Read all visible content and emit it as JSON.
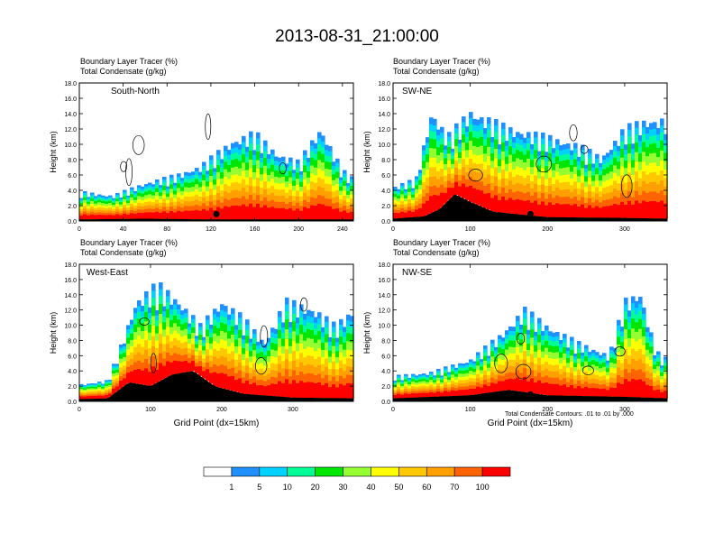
{
  "figure": {
    "title": "2013-08-31_21:00:00",
    "footnote": "Total Condensate Contours: .01 to .01 by .000",
    "xlabel": "Grid Point (dx=15km)",
    "ylabel": "Height (km)",
    "legend_levels": [
      "1",
      "5",
      "10",
      "20",
      "30",
      "40",
      "50",
      "60",
      "70",
      "100"
    ],
    "palette": [
      "#ffffff",
      "#1e90ff",
      "#00d2ff",
      "#00ff96",
      "#00e600",
      "#96ff32",
      "#ffff00",
      "#ffc800",
      "#ffa000",
      "#ff6400",
      "#ff0000"
    ]
  },
  "chart_data": [
    {
      "type": "heatmap",
      "name": "South-North",
      "title_line1": "Boundary Layer Tracer   (%)",
      "title_line2": "Total Condensate   (g/kg)",
      "xlim": [
        0,
        250
      ],
      "ylim": [
        0,
        18
      ],
      "xticks": [
        "0",
        "40",
        "80",
        "120",
        "160",
        "200",
        "240"
      ],
      "yticks": [
        "0.0",
        "2.0",
        "4.0",
        "6.0",
        "8.0",
        "10.0",
        "12.0",
        "14.0",
        "16.0",
        "18.0"
      ],
      "marker_x": 125,
      "terrain": [
        [
          0,
          0.2
        ],
        [
          60,
          0.3
        ],
        [
          120,
          0.2
        ],
        [
          180,
          0.2
        ],
        [
          250,
          0.2
        ]
      ],
      "tracer_top": [
        [
          0,
          3.5
        ],
        [
          30,
          3.0
        ],
        [
          60,
          4.5
        ],
        [
          90,
          5.5
        ],
        [
          110,
          6.5
        ],
        [
          140,
          9.5
        ],
        [
          160,
          10.5
        ],
        [
          180,
          8.0
        ],
        [
          200,
          7.0
        ],
        [
          220,
          11.0
        ],
        [
          240,
          6.0
        ],
        [
          250,
          5.0
        ]
      ]
    },
    {
      "type": "heatmap",
      "name": "SW-NE",
      "title_line1": "Boundary Layer Tracer   (%)",
      "title_line2": "Total Condensate   (g/kg)",
      "xlim": [
        0,
        355
      ],
      "ylim": [
        0,
        18
      ],
      "xticks": [
        "0",
        "100",
        "200",
        "300"
      ],
      "yticks": [
        "0.0",
        "2.0",
        "4.0",
        "6.0",
        "8.0",
        "10.0",
        "12.0",
        "14.0",
        "16.0",
        "18.0"
      ],
      "marker_x": 178,
      "terrain": [
        [
          0,
          0.3
        ],
        [
          40,
          0.6
        ],
        [
          60,
          1.5
        ],
        [
          80,
          3.5
        ],
        [
          100,
          2.5
        ],
        [
          130,
          1.2
        ],
        [
          200,
          0.5
        ],
        [
          300,
          0.4
        ],
        [
          355,
          0.3
        ]
      ],
      "tracer_top": [
        [
          0,
          4.0
        ],
        [
          30,
          5.0
        ],
        [
          50,
          13.0
        ],
        [
          70,
          10.0
        ],
        [
          100,
          13.0
        ],
        [
          150,
          11.0
        ],
        [
          200,
          10.0
        ],
        [
          240,
          9.0
        ],
        [
          270,
          7.5
        ],
        [
          300,
          11.0
        ],
        [
          330,
          12.0
        ],
        [
          355,
          12.0
        ]
      ]
    },
    {
      "type": "heatmap",
      "name": "West-East",
      "title_line1": "Boundary Layer Tracer   (%)",
      "title_line2": "Total Condensate   (g/kg)",
      "xlim": [
        0,
        385
      ],
      "ylim": [
        0,
        18
      ],
      "xticks": [
        "0",
        "100",
        "200",
        "300"
      ],
      "yticks": [
        "0.0",
        "2.0",
        "4.0",
        "6.0",
        "8.0",
        "10.0",
        "12.0",
        "14.0",
        "16.0",
        "18.0"
      ],
      "marker_x": 190,
      "terrain": [
        [
          0,
          0.3
        ],
        [
          40,
          0.4
        ],
        [
          70,
          2.5
        ],
        [
          100,
          2.0
        ],
        [
          130,
          3.5
        ],
        [
          160,
          4.0
        ],
        [
          190,
          2.0
        ],
        [
          230,
          1.0
        ],
        [
          300,
          0.5
        ],
        [
          385,
          0.4
        ]
      ],
      "tracer_top": [
        [
          0,
          2.0
        ],
        [
          40,
          2.5
        ],
        [
          60,
          7.0
        ],
        [
          80,
          12.0
        ],
        [
          110,
          14.0
        ],
        [
          140,
          12.0
        ],
        [
          170,
          9.0
        ],
        [
          200,
          12.0
        ],
        [
          230,
          10.0
        ],
        [
          260,
          7.0
        ],
        [
          290,
          12.0
        ],
        [
          330,
          11.0
        ],
        [
          360,
          9.0
        ],
        [
          385,
          11.0
        ]
      ]
    },
    {
      "type": "heatmap",
      "name": "NW-SE",
      "title_line1": "Boundary Layer Tracer   (%)",
      "title_line2": "Total Condensate   (g/kg)",
      "xlim": [
        0,
        355
      ],
      "ylim": [
        0,
        18
      ],
      "xticks": [
        "0",
        "100",
        "200",
        "300"
      ],
      "yticks": [
        "0.0",
        "2.0",
        "4.0",
        "6.0",
        "8.0",
        "10.0",
        "12.0",
        "14.0",
        "16.0",
        "18.0"
      ],
      "marker_x": 178,
      "terrain": [
        [
          0,
          0.4
        ],
        [
          100,
          0.8
        ],
        [
          150,
          1.5
        ],
        [
          200,
          0.8
        ],
        [
          300,
          0.6
        ],
        [
          355,
          0.4
        ]
      ],
      "tracer_top": [
        [
          0,
          3.0
        ],
        [
          50,
          3.5
        ],
        [
          100,
          5.0
        ],
        [
          140,
          8.0
        ],
        [
          170,
          11.0
        ],
        [
          200,
          9.0
        ],
        [
          240,
          7.0
        ],
        [
          280,
          5.5
        ],
        [
          300,
          12.0
        ],
        [
          320,
          13.0
        ],
        [
          340,
          6.0
        ],
        [
          355,
          5.0
        ]
      ]
    }
  ]
}
